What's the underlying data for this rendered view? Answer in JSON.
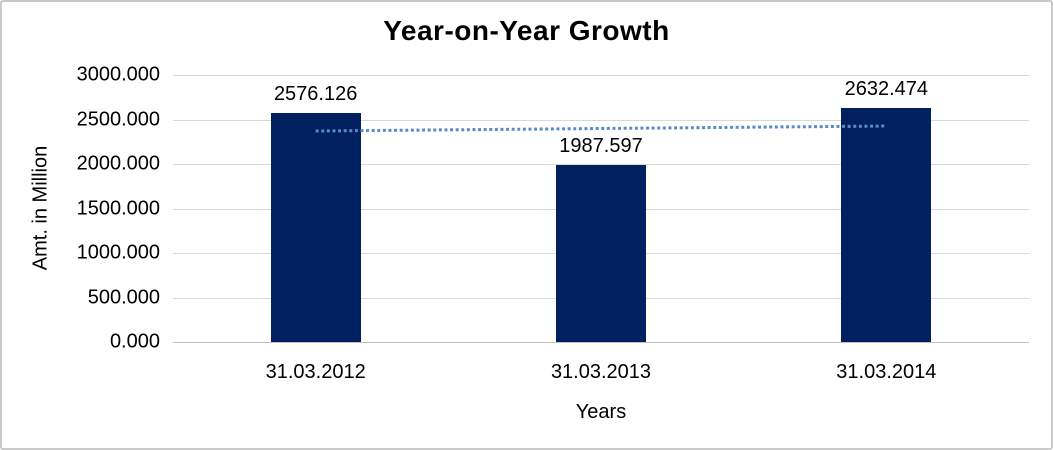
{
  "chart_data": {
    "type": "bar",
    "title": "Year-on-Year Growth",
    "xlabel": "Years",
    "ylabel": "Amt. in Million",
    "categories": [
      "31.03.2012",
      "31.03.2013",
      "31.03.2014"
    ],
    "values": [
      2576.126,
      1987.597,
      2632.474
    ],
    "data_labels": [
      "2576.126",
      "1987.597",
      "2632.474"
    ],
    "y_ticks": [
      "3000.000",
      "2500.000",
      "2000.000",
      "1500.000",
      "1000.000",
      "500.000",
      "0.000"
    ],
    "ylim": [
      0,
      3000
    ],
    "y_tick_step": 500,
    "grid": true,
    "legend_position": "none",
    "colors": {
      "bar": "#002060",
      "gridline": "#d9d9d9",
      "baseline": "#c2c2c2",
      "text": "#000000",
      "background": "#ffffff",
      "frame_border": "#c9c9c9"
    },
    "trendline": {
      "type": "linear",
      "style": "dotted",
      "color": "#5b8ac6",
      "start_value": 2370.6,
      "end_value": 2426.9
    }
  }
}
